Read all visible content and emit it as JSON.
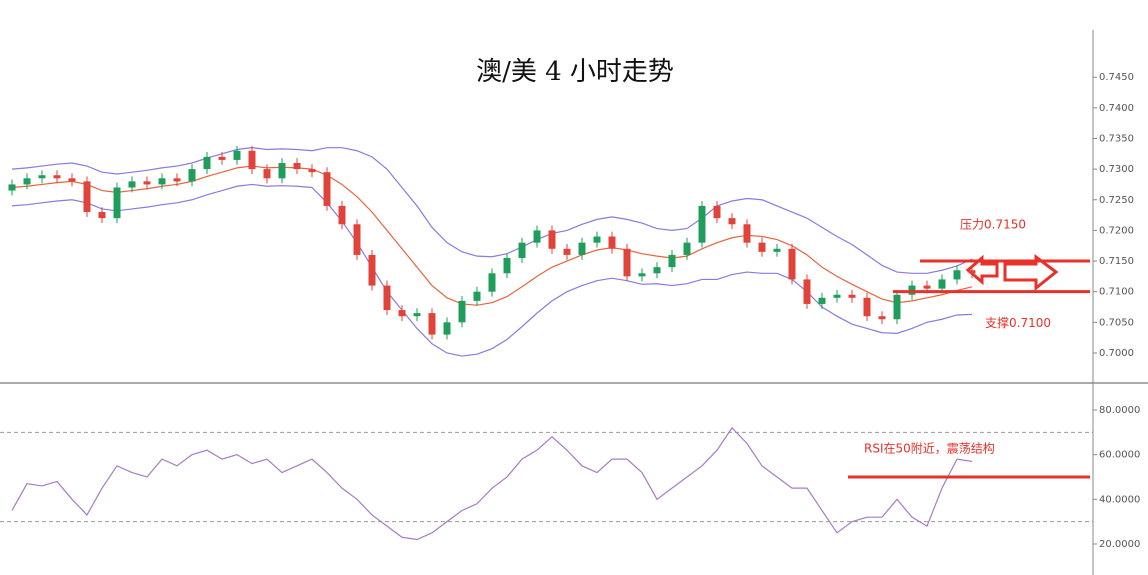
{
  "chart_data": [
    {
      "type": "candlestick",
      "title": "澳/美 4 小时走势",
      "open": [
        0.7265,
        0.7275,
        0.7285,
        0.729,
        0.7285,
        0.728,
        0.723,
        0.722,
        0.727,
        0.728,
        0.7275,
        0.7285,
        0.728,
        0.73,
        0.732,
        0.7315,
        0.733,
        0.73,
        0.7285,
        0.731,
        0.73,
        0.7295,
        0.724,
        0.721,
        0.716,
        0.711,
        0.707,
        0.706,
        0.7065,
        0.703,
        0.705,
        0.7085,
        0.71,
        0.713,
        0.7155,
        0.718,
        0.72,
        0.717,
        0.716,
        0.718,
        0.719,
        0.717,
        0.7125,
        0.713,
        0.714,
        0.716,
        0.718,
        0.724,
        0.722,
        0.721,
        0.718,
        0.7165,
        0.717,
        0.712,
        0.708,
        0.709,
        0.7095,
        0.709,
        0.706,
        0.7055,
        0.7095,
        0.711,
        0.7105,
        0.712,
        0.7135
      ],
      "high": [
        0.7283,
        0.7293,
        0.7298,
        0.7298,
        0.7293,
        0.7288,
        0.7238,
        0.7278,
        0.7288,
        0.7288,
        0.7293,
        0.7293,
        0.7308,
        0.7328,
        0.7328,
        0.7338,
        0.7338,
        0.7308,
        0.7318,
        0.7318,
        0.7308,
        0.7303,
        0.7248,
        0.7218,
        0.7168,
        0.7118,
        0.7078,
        0.7073,
        0.7073,
        0.7058,
        0.7093,
        0.7108,
        0.7138,
        0.7163,
        0.7188,
        0.7208,
        0.7208,
        0.7178,
        0.7188,
        0.7198,
        0.7198,
        0.7178,
        0.7138,
        0.7148,
        0.7168,
        0.7188,
        0.7248,
        0.7248,
        0.7228,
        0.7218,
        0.7188,
        0.7178,
        0.7178,
        0.7128,
        0.7098,
        0.7103,
        0.7103,
        0.7098,
        0.7068,
        0.7103,
        0.7118,
        0.7118,
        0.7128,
        0.7143,
        0.7143
      ],
      "low": [
        0.7257,
        0.7267,
        0.7277,
        0.7277,
        0.7272,
        0.7222,
        0.7212,
        0.7212,
        0.7262,
        0.7267,
        0.7267,
        0.7272,
        0.7272,
        0.7292,
        0.7307,
        0.7307,
        0.7292,
        0.7277,
        0.7277,
        0.7292,
        0.7287,
        0.7232,
        0.7202,
        0.7152,
        0.7102,
        0.7062,
        0.7052,
        0.7052,
        0.7022,
        0.7022,
        0.7042,
        0.7077,
        0.7092,
        0.7122,
        0.7147,
        0.7172,
        0.7162,
        0.7152,
        0.7152,
        0.7172,
        0.7162,
        0.7117,
        0.7117,
        0.7122,
        0.7132,
        0.7152,
        0.7172,
        0.7212,
        0.7202,
        0.7172,
        0.7157,
        0.7157,
        0.7112,
        0.7072,
        0.7072,
        0.7082,
        0.7082,
        0.7052,
        0.7047,
        0.7047,
        0.7087,
        0.7097,
        0.7097,
        0.7112,
        0.7122
      ],
      "close": [
        0.7275,
        0.7285,
        0.729,
        0.7285,
        0.728,
        0.723,
        0.722,
        0.727,
        0.728,
        0.7275,
        0.7285,
        0.728,
        0.73,
        0.732,
        0.7315,
        0.733,
        0.73,
        0.7285,
        0.731,
        0.73,
        0.7295,
        0.724,
        0.721,
        0.716,
        0.711,
        0.707,
        0.706,
        0.7065,
        0.703,
        0.705,
        0.7085,
        0.71,
        0.713,
        0.7155,
        0.718,
        0.72,
        0.717,
        0.716,
        0.718,
        0.719,
        0.717,
        0.7125,
        0.713,
        0.714,
        0.716,
        0.718,
        0.724,
        0.722,
        0.721,
        0.718,
        0.7165,
        0.717,
        0.712,
        0.708,
        0.709,
        0.7095,
        0.709,
        0.706,
        0.7055,
        0.7095,
        0.711,
        0.7105,
        0.712,
        0.7135,
        0.713
      ],
      "up_color": "#1e9e5a",
      "down_color": "#e0433a",
      "bands": [
        {
          "color": "#e8643c",
          "values": [
            0.727,
            0.7272,
            0.7275,
            0.7278,
            0.728,
            0.7275,
            0.7265,
            0.7262,
            0.7265,
            0.7268,
            0.7272,
            0.7275,
            0.728,
            0.7288,
            0.7295,
            0.7302,
            0.7305,
            0.7302,
            0.7303,
            0.7302,
            0.73,
            0.729,
            0.7275,
            0.7255,
            0.723,
            0.72,
            0.717,
            0.714,
            0.711,
            0.709,
            0.708,
            0.7078,
            0.7082,
            0.7092,
            0.7108,
            0.7125,
            0.714,
            0.715,
            0.716,
            0.7168,
            0.7172,
            0.7168,
            0.7162,
            0.7158,
            0.7155,
            0.7158,
            0.717,
            0.718,
            0.7188,
            0.7192,
            0.719,
            0.7185,
            0.7175,
            0.716,
            0.714,
            0.7125,
            0.7112,
            0.71,
            0.7088,
            0.7082,
            0.7085,
            0.709,
            0.7095,
            0.7102,
            0.7108
          ]
        },
        {
          "color": "#8a7ae0",
          "values": [
            0.73,
            0.7302,
            0.7305,
            0.7308,
            0.731,
            0.7305,
            0.7295,
            0.7292,
            0.7295,
            0.7298,
            0.7302,
            0.7305,
            0.731,
            0.7318,
            0.7325,
            0.7332,
            0.7335,
            0.7332,
            0.7333,
            0.7332,
            0.733,
            0.7335,
            0.7335,
            0.733,
            0.732,
            0.73,
            0.727,
            0.724,
            0.7205,
            0.718,
            0.7165,
            0.7158,
            0.7157,
            0.7162,
            0.7173,
            0.7185,
            0.7195,
            0.72,
            0.721,
            0.7218,
            0.7222,
            0.7218,
            0.7212,
            0.7203,
            0.72,
            0.7203,
            0.722,
            0.724,
            0.7248,
            0.7252,
            0.725,
            0.724,
            0.723,
            0.722,
            0.7205,
            0.719,
            0.7177,
            0.716,
            0.7143,
            0.7132,
            0.713,
            0.713,
            0.7135,
            0.7142,
            0.7153
          ]
        },
        {
          "color": "#8a7ae0",
          "values": [
            0.724,
            0.7242,
            0.7245,
            0.7248,
            0.725,
            0.7245,
            0.7235,
            0.7232,
            0.7235,
            0.7238,
            0.7242,
            0.7245,
            0.725,
            0.7258,
            0.7265,
            0.7272,
            0.7275,
            0.7272,
            0.7273,
            0.7272,
            0.727,
            0.7245,
            0.7215,
            0.718,
            0.714,
            0.71,
            0.707,
            0.704,
            0.7015,
            0.7,
            0.6995,
            0.6998,
            0.7007,
            0.7022,
            0.7043,
            0.7065,
            0.7085,
            0.71,
            0.711,
            0.7118,
            0.7122,
            0.7118,
            0.7112,
            0.7113,
            0.711,
            0.7113,
            0.712,
            0.712,
            0.7128,
            0.7132,
            0.713,
            0.713,
            0.712,
            0.71,
            0.7075,
            0.706,
            0.7047,
            0.704,
            0.7033,
            0.7032,
            0.704,
            0.705,
            0.7055,
            0.7062,
            0.7063
          ]
        }
      ],
      "ylim": [
        0.6951,
        0.7527
      ],
      "yticks": [
        {
          "value": 0.745,
          "label": "0.7450"
        },
        {
          "value": 0.74,
          "label": "0.7400"
        },
        {
          "value": 0.735,
          "label": "0.7350"
        },
        {
          "value": 0.73,
          "label": "0.7300"
        },
        {
          "value": 0.725,
          "label": "0.7250"
        },
        {
          "value": 0.72,
          "label": "0.7200"
        },
        {
          "value": 0.715,
          "label": "0.7150"
        },
        {
          "value": 0.71,
          "label": "0.7100"
        },
        {
          "value": 0.705,
          "label": "0.7050"
        },
        {
          "value": 0.7,
          "label": "0.7000"
        }
      ],
      "levels": [
        {
          "value": 0.715,
          "label": "压力0.7150",
          "color": "#e8312a"
        },
        {
          "value": 0.71,
          "label": "支撑0.7100",
          "color": "#e8312a"
        }
      ]
    },
    {
      "type": "line",
      "values": [
        35,
        47,
        46,
        48,
        40,
        33,
        45,
        55,
        52,
        50,
        58,
        55,
        60,
        62,
        58,
        60,
        56,
        58,
        52,
        55,
        58,
        52,
        45,
        40,
        33,
        28,
        23,
        22,
        25,
        30,
        35,
        38,
        45,
        50,
        58,
        62,
        68,
        62,
        55,
        52,
        58,
        58,
        52,
        40,
        45,
        50,
        55,
        62,
        72,
        65,
        55,
        50,
        45,
        45,
        35,
        25,
        30,
        32,
        32,
        40,
        32,
        28,
        45,
        58,
        57
      ],
      "color": "#a77bc4",
      "ylim": [
        6.1,
        92.1
      ],
      "yticks": [
        {
          "value": 80,
          "label": "80.0000"
        },
        {
          "value": 60,
          "label": "60.0000"
        },
        {
          "value": 40,
          "label": "40.0000"
        },
        {
          "value": 20,
          "label": "20.0000"
        }
      ],
      "reference_lines": [
        70,
        30
      ],
      "levels": [
        {
          "value": 50,
          "label": "RSI在50附近，震荡结构",
          "color": "#e8312a"
        }
      ]
    }
  ]
}
